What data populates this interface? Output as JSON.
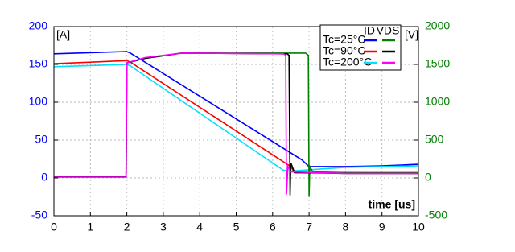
{
  "chart_data": {
    "type": "line",
    "y_label": "[A]",
    "y2_label": "[V]",
    "x_label": "time [us]",
    "legend_columns": [
      "ID",
      "VDS"
    ],
    "xlim": [
      0,
      10
    ],
    "xticks": [
      0,
      1,
      2,
      3,
      4,
      5,
      6,
      7,
      8,
      9,
      10
    ],
    "ylim": [
      -50,
      200
    ],
    "yticks": [
      -50,
      0,
      50,
      100,
      150,
      200
    ],
    "y_color": "#0000ff",
    "y2lim": [
      -500,
      2000
    ],
    "y2ticks": [
      -500,
      0,
      500,
      1000,
      1500,
      2000
    ],
    "y2_color": "#008000",
    "grid": true,
    "series": [
      {
        "name": "Tc=25°C",
        "color": "#0000ff",
        "x": [
          0,
          2,
          2.1,
          6.8,
          7.0,
          8,
          9,
          10
        ],
        "values": [
          164,
          167,
          165,
          24,
          15,
          15,
          16,
          18
        ]
      },
      {
        "name": "Tc=90°C",
        "color": "#ff0000",
        "x": [
          0,
          2,
          2.1,
          6.5,
          6.6,
          8,
          10
        ],
        "values": [
          151,
          155,
          153,
          15,
          7,
          7,
          6
        ]
      },
      {
        "name": "Tc=200°C",
        "color": "#00e0ff",
        "x": [
          0,
          2,
          2.1,
          6.3,
          6.5,
          8,
          10
        ],
        "values": [
          147,
          150,
          148,
          10,
          9,
          14,
          16
        ]
      },
      {
        "name": "Tc=25°C",
        "color": "#008000",
        "axis": "y2",
        "x": [
          0,
          1.98,
          2.0,
          2.5,
          3.5,
          6.9,
          6.98,
          7.0,
          7.02,
          7.1,
          8,
          10
        ],
        "values": [
          15,
          15,
          1520,
          1580,
          1650,
          1650,
          1620,
          -250,
          150,
          80,
          70,
          70
        ]
      },
      {
        "name": "Tc=90°C",
        "color": "#000000",
        "axis": "y2",
        "x": [
          0,
          1.98,
          2.0,
          2.5,
          3.5,
          6.4,
          6.45,
          6.48,
          6.5,
          6.6,
          8,
          10
        ],
        "values": [
          15,
          15,
          1520,
          1580,
          1650,
          1640,
          1620,
          -230,
          200,
          70,
          60,
          60
        ]
      },
      {
        "name": "Tc=200°C",
        "color": "#ff00ff",
        "axis": "y2",
        "x": [
          0,
          1.98,
          2.0,
          2.5,
          3.5,
          6.3,
          6.36,
          6.38,
          6.42,
          6.5,
          8,
          10
        ],
        "values": [
          10,
          10,
          1520,
          1590,
          1650,
          1640,
          1620,
          -220,
          150,
          80,
          60,
          60
        ]
      }
    ]
  }
}
